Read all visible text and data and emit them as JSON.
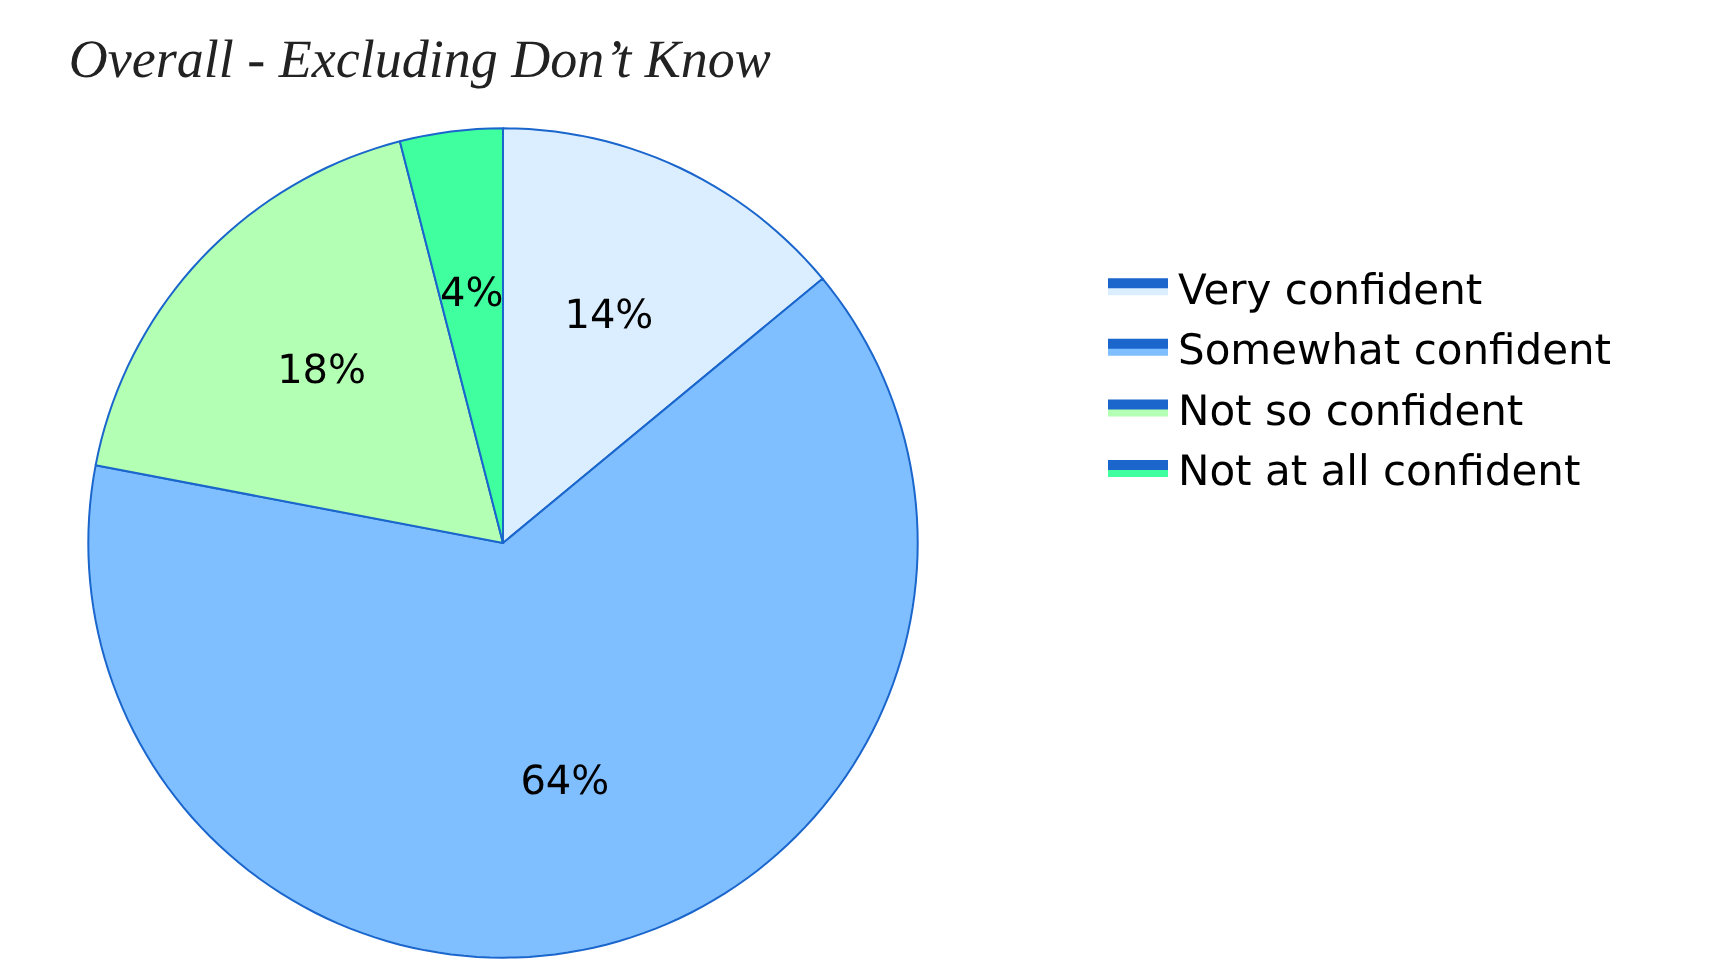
{
  "chart_data": {
    "type": "pie",
    "title": "Overall - Excluding Don’t Know",
    "categories": [
      "Very confident",
      "Somewhat confident",
      "Not so confident",
      "Not at all confident"
    ],
    "values": [
      14,
      64,
      18,
      4
    ],
    "value_labels": [
      "14%",
      "64%",
      "18%",
      "4%"
    ],
    "colors": [
      "#dbeeff",
      "#80bfff",
      "#b3ffb3",
      "#40ff9f"
    ],
    "legend": "right"
  }
}
